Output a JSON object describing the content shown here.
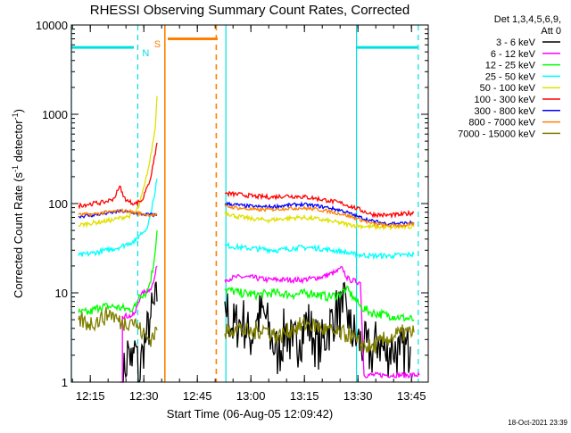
{
  "chart_data": {
    "type": "line",
    "title": "RHESSI Observing Summary Count Rates, Corrected",
    "xlabel": "Start Time (06-Aug-05 12:09:42)",
    "ylabel_main": "Corrected Count Rate (s",
    "ylabel_sup": "-1",
    "ylabel_tail": " detector",
    "ylabel_end": ")",
    "x_range_min": [
      0,
      100
    ],
    "y_scale": "log",
    "ylim": [
      1,
      10000
    ],
    "y_ticks": [
      {
        "value": 1,
        "label": "1"
      },
      {
        "value": 10,
        "label": "10"
      },
      {
        "value": 100,
        "label": "100"
      },
      {
        "value": 1000,
        "label": "1000"
      },
      {
        "value": 10000,
        "label": "10000"
      }
    ],
    "x_ticks": [
      {
        "value": 5.3,
        "label": "12:15"
      },
      {
        "value": 20.3,
        "label": "12:30"
      },
      {
        "value": 35.3,
        "label": "12:45"
      },
      {
        "value": 50.3,
        "label": "13:00"
      },
      {
        "value": 65.3,
        "label": "13:15"
      },
      {
        "value": 80.3,
        "label": "13:30"
      },
      {
        "value": 95.3,
        "label": "13:45"
      }
    ],
    "legend_header": [
      "Det 1,3,4,5,6,9,",
      "Att 0"
    ],
    "legend_position": "right",
    "gaps": [
      [
        24,
        42.5
      ]
    ],
    "markers": [
      {
        "kind": "solid",
        "x": 0,
        "color": "#00e0e0"
      },
      {
        "kind": "dashed",
        "x": 18.6,
        "color": "#00e0e0",
        "label": "N"
      },
      {
        "kind": "solid",
        "x": 26.2,
        "color": "#ff8000",
        "label": "S"
      },
      {
        "kind": "dashed",
        "x": 40.6,
        "color": "#ff8000"
      },
      {
        "kind": "solid",
        "x": 43.3,
        "color": "#00e0e0"
      },
      {
        "kind": "solid",
        "x": 79.9,
        "color": "#00e0e0"
      },
      {
        "kind": "dashed",
        "x": 97.2,
        "color": "#00e0e0"
      }
    ],
    "bars": [
      {
        "x0": 0,
        "x1": 17.5,
        "y": 5600,
        "color": "#00e0e0"
      },
      {
        "x0": 27,
        "x1": 41,
        "y": 7000,
        "color": "#ff8000"
      },
      {
        "x0": 80,
        "x1": 97,
        "y": 5600,
        "color": "#00e0e0"
      }
    ],
    "series": [
      {
        "name": "3 - 6 keV",
        "color": "#000000",
        "jitter": 0.6,
        "points": [
          [
            14.3,
            1
          ],
          [
            15,
            1.3
          ],
          [
            16,
            2.5
          ],
          [
            17,
            1.5
          ],
          [
            18,
            2.6
          ],
          [
            19,
            1
          ],
          [
            20,
            2.5
          ],
          [
            21,
            3
          ],
          [
            22,
            5
          ],
          [
            24,
            8
          ],
          [
            43,
            8
          ],
          [
            45,
            4
          ],
          [
            48,
            5
          ],
          [
            50,
            3
          ],
          [
            52,
            5
          ],
          [
            54,
            6
          ],
          [
            56,
            3
          ],
          [
            58,
            2
          ],
          [
            60,
            4
          ],
          [
            62,
            2.5
          ],
          [
            64,
            3
          ],
          [
            66,
            5
          ],
          [
            68,
            3
          ],
          [
            70,
            2.5
          ],
          [
            72,
            4
          ],
          [
            74,
            6
          ],
          [
            76,
            6
          ],
          [
            77,
            8
          ],
          [
            78,
            4
          ],
          [
            80,
            3
          ],
          [
            82,
            2.5
          ],
          [
            84,
            2
          ],
          [
            86,
            3
          ],
          [
            88,
            2
          ],
          [
            90,
            2.5
          ],
          [
            92,
            2
          ],
          [
            95,
            2.5
          ]
        ]
      },
      {
        "name": "6 - 12 keV",
        "color": "#ff00ff",
        "jitter": 0.06,
        "points": [
          [
            13.5,
            1
          ],
          [
            14.3,
            1
          ],
          [
            14.3,
            5.5
          ],
          [
            17,
            5.5
          ],
          [
            18,
            6
          ],
          [
            18.3,
            7
          ],
          [
            19.5,
            9.5
          ],
          [
            22,
            11
          ],
          [
            23,
            13
          ],
          [
            24,
            20
          ],
          [
            43,
            14
          ],
          [
            46,
            15
          ],
          [
            50,
            15
          ],
          [
            55,
            14
          ],
          [
            60,
            14
          ],
          [
            65,
            14
          ],
          [
            70,
            15
          ],
          [
            74,
            17
          ],
          [
            76,
            19
          ],
          [
            77,
            15
          ],
          [
            78,
            14
          ],
          [
            81,
            13
          ],
          [
            82,
            1.2
          ],
          [
            97.5,
            1.2
          ]
        ]
      },
      {
        "name": "12 - 25 keV",
        "color": "#00ff00",
        "jitter": 0.1,
        "points": [
          [
            2,
            6
          ],
          [
            5,
            6
          ],
          [
            8,
            7
          ],
          [
            12,
            7
          ],
          [
            16,
            6.5
          ],
          [
            18,
            7
          ],
          [
            19,
            9.5
          ],
          [
            21,
            10
          ],
          [
            22,
            13
          ],
          [
            23,
            20
          ],
          [
            24,
            50
          ],
          [
            43,
            11
          ],
          [
            47,
            10
          ],
          [
            52,
            9.5
          ],
          [
            57,
            10
          ],
          [
            62,
            9.5
          ],
          [
            67,
            10
          ],
          [
            72,
            9
          ],
          [
            75,
            9.5
          ],
          [
            77,
            11
          ],
          [
            79,
            9
          ],
          [
            81,
            7
          ],
          [
            84,
            6
          ],
          [
            90,
            5.5
          ],
          [
            96,
            5
          ]
        ]
      },
      {
        "name": "25 - 50 keV",
        "color": "#00ffff",
        "jitter": 0.06,
        "points": [
          [
            2,
            26
          ],
          [
            6,
            28
          ],
          [
            10,
            30
          ],
          [
            14,
            33
          ],
          [
            16,
            36
          ],
          [
            18,
            38
          ],
          [
            19,
            44
          ],
          [
            21,
            52
          ],
          [
            22,
            70
          ],
          [
            23,
            110
          ],
          [
            24,
            190
          ],
          [
            43,
            34
          ],
          [
            48,
            32
          ],
          [
            53,
            31
          ],
          [
            58,
            30
          ],
          [
            63,
            32
          ],
          [
            68,
            32
          ],
          [
            73,
            30
          ],
          [
            76,
            29
          ],
          [
            79,
            27
          ],
          [
            84,
            26
          ],
          [
            90,
            26
          ],
          [
            96,
            27
          ]
        ]
      },
      {
        "name": "50 - 100 keV",
        "color": "#e0e000",
        "jitter": 0.05,
        "points": [
          [
            2,
            57
          ],
          [
            5,
            60
          ],
          [
            9,
            63
          ],
          [
            12,
            66
          ],
          [
            14,
            70
          ],
          [
            16,
            72
          ],
          [
            18,
            80
          ],
          [
            19,
            95
          ],
          [
            20.5,
            160
          ],
          [
            22,
            300
          ],
          [
            23.5,
            700
          ],
          [
            24,
            1600
          ],
          [
            43,
            80
          ],
          [
            46,
            72
          ],
          [
            50,
            68
          ],
          [
            55,
            65
          ],
          [
            60,
            68
          ],
          [
            64,
            70
          ],
          [
            68,
            68
          ],
          [
            73,
            63
          ],
          [
            78,
            58
          ],
          [
            83,
            55
          ],
          [
            90,
            54
          ],
          [
            96,
            55
          ]
        ]
      },
      {
        "name": "100 - 300 keV",
        "color": "#ff0000",
        "jitter": 0.05,
        "points": [
          [
            2,
            95
          ],
          [
            6,
            100
          ],
          [
            9,
            103
          ],
          [
            11,
            110
          ],
          [
            12,
            115
          ],
          [
            13,
            140
          ],
          [
            13.8,
            155
          ],
          [
            14.5,
            120
          ],
          [
            16,
            105
          ],
          [
            18,
            100
          ],
          [
            19,
            105
          ],
          [
            20,
            110
          ],
          [
            21,
            150
          ],
          [
            22,
            180
          ],
          [
            23,
            280
          ],
          [
            24,
            480
          ],
          [
            43,
            130
          ],
          [
            48,
            125
          ],
          [
            52,
            120
          ],
          [
            56,
            118
          ],
          [
            60,
            122
          ],
          [
            64,
            120
          ],
          [
            68,
            115
          ],
          [
            72,
            108
          ],
          [
            76,
            100
          ],
          [
            80,
            88
          ],
          [
            84,
            76
          ],
          [
            88,
            74
          ],
          [
            92,
            75
          ],
          [
            96,
            79
          ]
        ]
      },
      {
        "name": "300 - 800 keV",
        "color": "#0000ff",
        "jitter": 0.04,
        "points": [
          [
            2,
            72
          ],
          [
            6,
            74
          ],
          [
            10,
            78
          ],
          [
            14,
            82
          ],
          [
            16,
            80
          ],
          [
            18,
            78
          ],
          [
            20,
            76
          ],
          [
            24,
            74
          ],
          [
            43,
            100
          ],
          [
            48,
            95
          ],
          [
            52,
            92
          ],
          [
            56,
            92
          ],
          [
            60,
            95
          ],
          [
            64,
            98
          ],
          [
            68,
            95
          ],
          [
            72,
            90
          ],
          [
            76,
            83
          ],
          [
            80,
            72
          ],
          [
            84,
            64
          ],
          [
            88,
            60
          ],
          [
            92,
            60
          ],
          [
            96,
            61
          ]
        ]
      },
      {
        "name": "800 - 7000 keV",
        "color": "#ff8000",
        "jitter": 0.04,
        "points": [
          [
            2,
            75
          ],
          [
            6,
            76
          ],
          [
            10,
            80
          ],
          [
            14,
            83
          ],
          [
            16,
            82
          ],
          [
            18,
            79
          ],
          [
            20,
            76
          ],
          [
            24,
            74
          ],
          [
            43,
            93
          ],
          [
            48,
            88
          ],
          [
            52,
            85
          ],
          [
            56,
            86
          ],
          [
            60,
            88
          ],
          [
            64,
            89
          ],
          [
            68,
            87
          ],
          [
            72,
            82
          ],
          [
            76,
            76
          ],
          [
            80,
            68
          ],
          [
            84,
            60
          ],
          [
            88,
            57
          ],
          [
            92,
            57
          ],
          [
            96,
            58
          ]
        ]
      },
      {
        "name": "7000 - 15000 keV",
        "color": "#808000",
        "jitter": 0.2,
        "points": [
          [
            2,
            5
          ],
          [
            5,
            4.5
          ],
          [
            8,
            5
          ],
          [
            11,
            6
          ],
          [
            14,
            4.5
          ],
          [
            17,
            5
          ],
          [
            19,
            4
          ],
          [
            20,
            3.5
          ],
          [
            22,
            3
          ],
          [
            24,
            3.8
          ],
          [
            43,
            3.5
          ],
          [
            46,
            4.2
          ],
          [
            50,
            3.5
          ],
          [
            54,
            4
          ],
          [
            58,
            3.2
          ],
          [
            62,
            4
          ],
          [
            66,
            4.5
          ],
          [
            70,
            4
          ],
          [
            74,
            3.5
          ],
          [
            78,
            3.4
          ],
          [
            80,
            2.8
          ],
          [
            84,
            2.4
          ],
          [
            88,
            3
          ],
          [
            92,
            3.5
          ],
          [
            96,
            3.6
          ]
        ]
      }
    ]
  },
  "footer_timestamp": "18-Oct-2021 23:39"
}
